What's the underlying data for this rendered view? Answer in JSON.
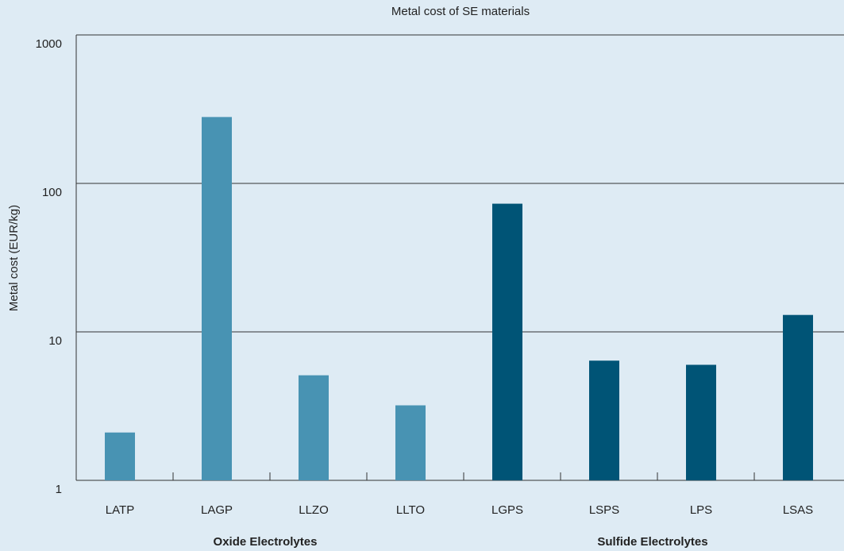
{
  "chart_data": {
    "type": "bar",
    "title": "Metal cost of SE materials",
    "y_label": "Metal cost (EUR/kg)",
    "categories": [
      "LATP",
      "LAGP",
      "LLZO",
      "LLTO",
      "LGPS",
      "LSPS",
      "LPS",
      "LSAS"
    ],
    "series": [
      {
        "name": "Oxide Electrolytes",
        "color": "#4893b3",
        "values": [
          2.1,
          280,
          5.1,
          3.2,
          null,
          null,
          null,
          null
        ]
      },
      {
        "name": "Sulfide Electrolytes",
        "color": "#005476",
        "values": [
          null,
          null,
          null,
          null,
          73,
          6.4,
          6.0,
          13
        ]
      }
    ],
    "ylim": [
      1,
      1000
    ],
    "yticks": [
      1,
      10,
      100,
      1000
    ],
    "log_y": true,
    "grid": true
  }
}
